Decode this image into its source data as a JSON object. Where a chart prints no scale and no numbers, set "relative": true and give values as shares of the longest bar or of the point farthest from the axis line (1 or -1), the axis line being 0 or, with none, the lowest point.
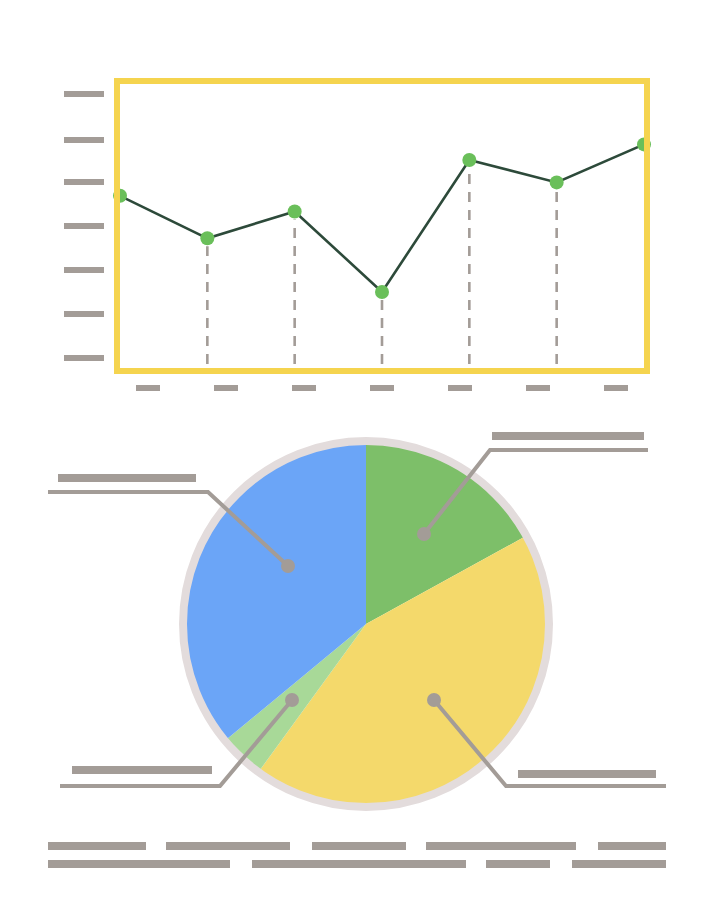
{
  "chart_data": [
    {
      "type": "line",
      "relative": true,
      "categories": [
        null,
        null,
        null,
        null,
        null,
        null,
        null
      ],
      "grid": false,
      "marker": "circle",
      "line_style": "solid",
      "series": [
        {
          "color": "#2d4a3a",
          "colors": [
            "#6abf5a",
            "#6abf5a",
            "#6abf5a",
            "#6abf5a",
            "#6abf5a",
            "#6abf5a",
            "#6abf5a"
          ],
          "values": [
            0.77,
            0.58,
            0.7,
            0.34,
            0.93,
            0.83,
            1
          ]
        }
      ]
    },
    {
      "type": "pie",
      "categories": [
        null,
        null,
        null,
        null
      ],
      "values": [
        17,
        43,
        4,
        36
      ],
      "colors": [
        "#7dbf69",
        "#f4d96b",
        "#a8d998",
        "#6ba5f7"
      ]
    }
  ]
}
